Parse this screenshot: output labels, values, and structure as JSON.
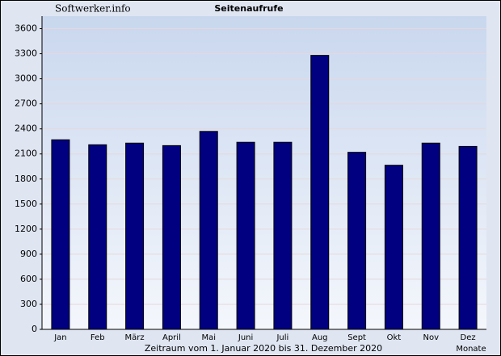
{
  "chart_data": {
    "type": "bar",
    "title": "Seitenaufrufe",
    "source": "Softwerker.info",
    "x_label": "Zeitraum vom 1. Januar 2020 bis 31. Dezember 2020",
    "x_unit_label": "Monate",
    "categories": [
      "Jan",
      "Feb",
      "März",
      "April",
      "Mai",
      "Juni",
      "Juli",
      "Aug",
      "Sept",
      "Okt",
      "Nov",
      "Dez"
    ],
    "values": [
      2270,
      2210,
      2230,
      2200,
      2370,
      2240,
      2240,
      3280,
      2120,
      1965,
      2230,
      2190
    ],
    "color": "#000080",
    "ylim": [
      0,
      3750
    ],
    "yticks": [
      0,
      300,
      600,
      900,
      1200,
      1500,
      1800,
      2100,
      2400,
      2700,
      3000,
      3300,
      3600
    ],
    "grid": true
  }
}
